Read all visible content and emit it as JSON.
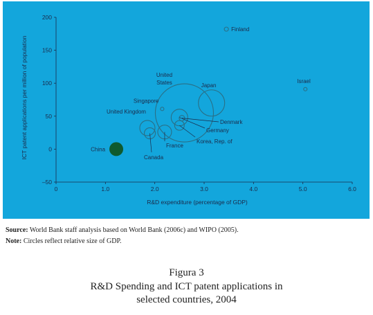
{
  "chart_data": {
    "type": "scatter",
    "xlabel": "R&D expenditure (percentage of GDP)",
    "ylabel": "ICT patent applications per million of population",
    "xlim": [
      0,
      6
    ],
    "ylim": [
      -50,
      200
    ],
    "x_ticks": [
      "0",
      "1.0",
      "2.0",
      "3.0",
      "4.0",
      "5.0",
      "6.0"
    ],
    "y_ticks": [
      "200",
      "150",
      "100",
      "50",
      "0",
      "–50"
    ],
    "grid": false,
    "points": [
      {
        "name": "Finland",
        "x": 3.45,
        "y": 182,
        "relative_gdp_radius": 3
      },
      {
        "name": "Israel",
        "x": 5.05,
        "y": 91,
        "relative_gdp_radius": 2.5
      },
      {
        "name": "United States",
        "x": 2.6,
        "y": 55,
        "relative_gdp_radius": 42
      },
      {
        "name": "Japan",
        "x": 3.15,
        "y": 70,
        "relative_gdp_radius": 19
      },
      {
        "name": "Singapore",
        "x": 2.15,
        "y": 61,
        "relative_gdp_radius": 2.5
      },
      {
        "name": "Denmark",
        "x": 2.55,
        "y": 47,
        "relative_gdp_radius": 4
      },
      {
        "name": "Germany",
        "x": 2.5,
        "y": 48,
        "relative_gdp_radius": 12
      },
      {
        "name": "United Kingdom",
        "x": 1.85,
        "y": 32,
        "relative_gdp_radius": 11
      },
      {
        "name": "Korea, Rep. of",
        "x": 2.5,
        "y": 36,
        "relative_gdp_radius": 7
      },
      {
        "name": "France",
        "x": 2.2,
        "y": 26,
        "relative_gdp_radius": 10
      },
      {
        "name": "Canada",
        "x": 1.9,
        "y": 24,
        "relative_gdp_radius": 8
      },
      {
        "name": "China",
        "x": 1.22,
        "y": 0,
        "relative_gdp_radius": 10,
        "filled": true
      }
    ],
    "colors": {
      "background": "#13a6dc",
      "circle": "#1b6e8a",
      "filled": "#0f5a2e"
    }
  },
  "notes": {
    "source_label": "Source:",
    "source_text": "World Bank staff analysis based on World Bank (2006c) and WIPO (2005).",
    "note_label": "Note:",
    "note_text": "Circles reflect relative size of GDP."
  },
  "caption": {
    "figure_label": "Figura 3",
    "title": "R&D Spending and ICT patent applications in selected countries, 2004"
  }
}
